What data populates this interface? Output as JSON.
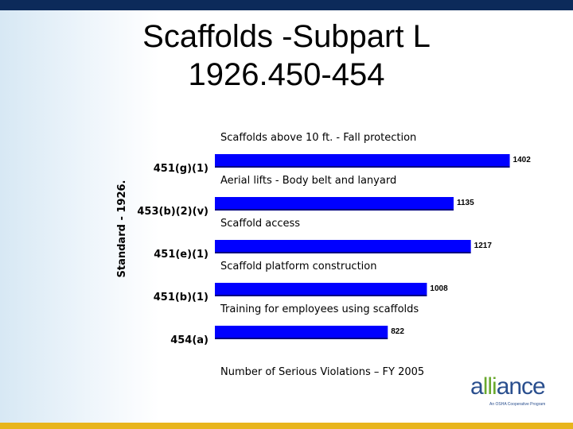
{
  "slide": {
    "title_line1": "Scaffolds -Subpart L",
    "title_line2": "1926.450-454"
  },
  "chart_data": {
    "type": "bar",
    "orientation": "horizontal",
    "categories": [
      "451(g)(1)",
      "453(b)(2)(v)",
      "451(e)(1)",
      "451(b)(1)",
      "454(a)"
    ],
    "descriptions": [
      "Scaffolds above 10 ft. - Fall protection",
      "Aerial lifts - Body belt and lanyard",
      "Scaffold access",
      "Scaffold platform construction",
      "Training for employees using scaffolds"
    ],
    "values": [
      1402,
      1135,
      1217,
      1008,
      822
    ],
    "xlabel": "Number of Serious Violations – FY 2005",
    "ylabel": "Standard - 1926.",
    "bar_color": "#0000ff",
    "grid": false,
    "legend": "none"
  },
  "logo": {
    "word_a": "a",
    "word_ii": "lli",
    "word_b": "ance",
    "tagline": "An OSHA Cooperative Program"
  }
}
